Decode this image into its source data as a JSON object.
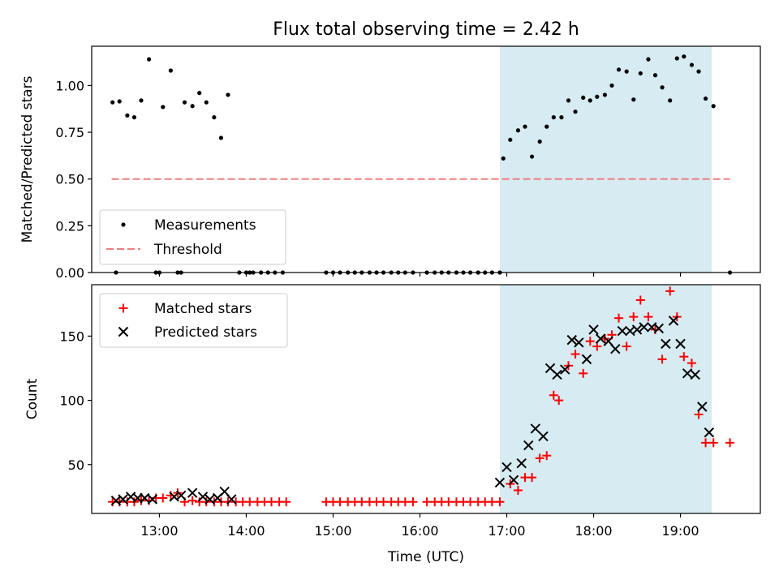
{
  "title": "Flux total observing time = 2.42 h",
  "colors": {
    "shade": "#add8e6",
    "measurement": "#000000",
    "threshold": "#f08080",
    "matched": "#ff0000",
    "predicted": "#000000"
  },
  "chart_data": [
    {
      "type": "scatter",
      "panel": "top",
      "ylabel": "Matched/Predicted stars",
      "xlabel": "",
      "xlim": [
        12.22,
        19.92
      ],
      "ylim": [
        0,
        1.21
      ],
      "yticks": [
        0.0,
        0.25,
        0.5,
        0.75,
        1.0
      ],
      "ytick_labels": [
        "0.00",
        "0.25",
        "0.50",
        "0.75",
        "1.00"
      ],
      "shaded_span": [
        16.92,
        19.36
      ],
      "legend": {
        "position": "lower-left",
        "entries": [
          "Measurements",
          "Threshold"
        ]
      },
      "threshold": {
        "name": "Threshold",
        "value": 0.5,
        "x_range": [
          12.45,
          19.57
        ]
      },
      "series": [
        {
          "name": "Measurements",
          "x": [
            12.46,
            12.54,
            12.63,
            12.71,
            12.79,
            12.88,
            12.96,
            13.04,
            13.13,
            13.21,
            13.29,
            13.38,
            13.46,
            13.54,
            13.63,
            13.71,
            13.79,
            14.04,
            12.5,
            13.0,
            13.25,
            13.92,
            14.0,
            14.08,
            14.17,
            14.25,
            14.33,
            14.42,
            14.92,
            15.0,
            15.08,
            15.17,
            15.25,
            15.33,
            15.42,
            15.5,
            15.58,
            15.67,
            15.75,
            15.83,
            15.92,
            16.08,
            16.17,
            16.25,
            16.33,
            16.42,
            16.5,
            16.58,
            16.67,
            16.75,
            16.83,
            16.92,
            16.96,
            17.04,
            17.13,
            17.21,
            17.29,
            17.38,
            17.46,
            17.54,
            17.63,
            17.71,
            17.79,
            17.88,
            17.96,
            18.04,
            18.13,
            18.21,
            18.29,
            18.38,
            18.46,
            18.54,
            18.63,
            18.71,
            18.79,
            18.88,
            18.96,
            19.04,
            19.13,
            19.21,
            19.29,
            19.38,
            19.57
          ],
          "y": [
            0.91,
            0.915,
            0.84,
            0.83,
            0.92,
            1.14,
            0.0,
            0.885,
            1.08,
            0.0,
            0.91,
            0.89,
            0.96,
            0.91,
            0.83,
            0.72,
            0.95,
            0.0,
            0.0,
            0.0,
            0.0,
            0.0,
            0.0,
            0.0,
            0.0,
            0.0,
            0.0,
            0.0,
            0.0,
            0.0,
            0.0,
            0.0,
            0.0,
            0.0,
            0.0,
            0.0,
            0.0,
            0.0,
            0.0,
            0.0,
            0.0,
            0.0,
            0.0,
            0.0,
            0.0,
            0.0,
            0.0,
            0.0,
            0.0,
            0.0,
            0.0,
            0.0,
            0.61,
            0.71,
            0.76,
            0.78,
            0.62,
            0.7,
            0.78,
            0.83,
            0.83,
            0.92,
            0.86,
            0.935,
            0.92,
            0.94,
            0.95,
            1.0,
            1.085,
            1.075,
            0.925,
            1.065,
            1.14,
            1.055,
            0.99,
            0.92,
            1.145,
            1.155,
            1.11,
            1.075,
            0.93,
            0.89,
            0.0
          ]
        }
      ]
    },
    {
      "type": "scatter",
      "panel": "bottom",
      "ylabel": "Count",
      "xlabel": "Time (UTC)",
      "xlim": [
        12.22,
        19.92
      ],
      "ylim": [
        12,
        190
      ],
      "yticks": [
        50,
        100,
        150
      ],
      "ytick_labels": [
        "50",
        "100",
        "150"
      ],
      "xticks": [
        13,
        14,
        15,
        16,
        17,
        18,
        19
      ],
      "xtick_labels": [
        "13:00",
        "14:00",
        "15:00",
        "16:00",
        "17:00",
        "18:00",
        "19:00"
      ],
      "shaded_span": [
        16.92,
        19.36
      ],
      "legend": {
        "position": "top-left",
        "entries": [
          "Matched stars",
          "Predicted stars"
        ]
      },
      "series": [
        {
          "name": "Matched stars",
          "marker": "+",
          "x": [
            12.46,
            12.54,
            12.63,
            12.71,
            12.79,
            12.88,
            12.96,
            13.04,
            13.13,
            13.21,
            13.29,
            13.38,
            13.46,
            13.54,
            13.63,
            13.71,
            13.79,
            13.88,
            13.96,
            14.04,
            14.13,
            14.21,
            14.29,
            14.38,
            14.46,
            14.92,
            15.0,
            15.08,
            15.17,
            15.25,
            15.33,
            15.42,
            15.5,
            15.58,
            15.67,
            15.75,
            15.83,
            15.92,
            16.08,
            16.17,
            16.25,
            16.33,
            16.42,
            16.5,
            16.58,
            16.67,
            16.75,
            16.83,
            16.92,
            17.04,
            17.13,
            17.21,
            17.29,
            17.38,
            17.46,
            17.54,
            17.6,
            17.71,
            17.79,
            17.88,
            17.96,
            18.04,
            18.13,
            18.21,
            18.29,
            18.38,
            18.46,
            18.54,
            18.63,
            18.71,
            18.79,
            18.88,
            18.96,
            19.04,
            19.13,
            19.21,
            19.29,
            19.38,
            19.57
          ],
          "y": [
            21,
            21,
            21,
            21,
            22,
            22,
            24,
            24,
            26,
            28,
            21,
            22,
            21,
            21,
            21,
            21,
            21,
            21,
            21,
            21,
            21,
            21,
            21,
            21,
            21,
            21,
            21,
            21,
            21,
            21,
            21,
            21,
            21,
            21,
            21,
            21,
            21,
            21,
            21,
            21,
            21,
            21,
            21,
            21,
            21,
            21,
            21,
            21,
            21,
            35,
            30,
            40,
            40,
            55,
            57,
            104,
            100,
            127,
            136,
            121,
            146,
            142,
            148,
            151,
            164,
            142,
            165,
            178,
            165,
            155,
            132,
            185,
            165,
            134,
            129,
            89,
            67,
            67,
            67
          ]
        },
        {
          "name": "Predicted stars",
          "marker": "x",
          "x": [
            12.5,
            12.58,
            12.67,
            12.75,
            12.83,
            12.92,
            13.17,
            13.25,
            13.38,
            13.5,
            13.58,
            13.67,
            13.75,
            13.83,
            16.92,
            17.0,
            17.08,
            17.17,
            17.25,
            17.33,
            17.42,
            17.5,
            17.58,
            17.67,
            17.75,
            17.83,
            17.92,
            18.0,
            18.08,
            18.17,
            18.25,
            18.33,
            18.42,
            18.5,
            18.58,
            18.67,
            18.75,
            18.83,
            18.92,
            19.0,
            19.08,
            19.17,
            19.25,
            19.33
          ],
          "y": [
            22,
            23,
            25,
            24,
            24,
            23,
            25,
            26,
            28,
            25,
            23,
            24,
            29,
            23,
            36,
            48,
            38,
            51,
            65,
            78,
            72,
            125,
            120,
            124,
            147,
            145,
            132,
            155,
            148,
            146,
            140,
            154,
            154,
            155,
            157,
            157,
            156,
            144,
            162,
            144,
            121,
            120,
            95,
            75
          ]
        }
      ]
    }
  ]
}
